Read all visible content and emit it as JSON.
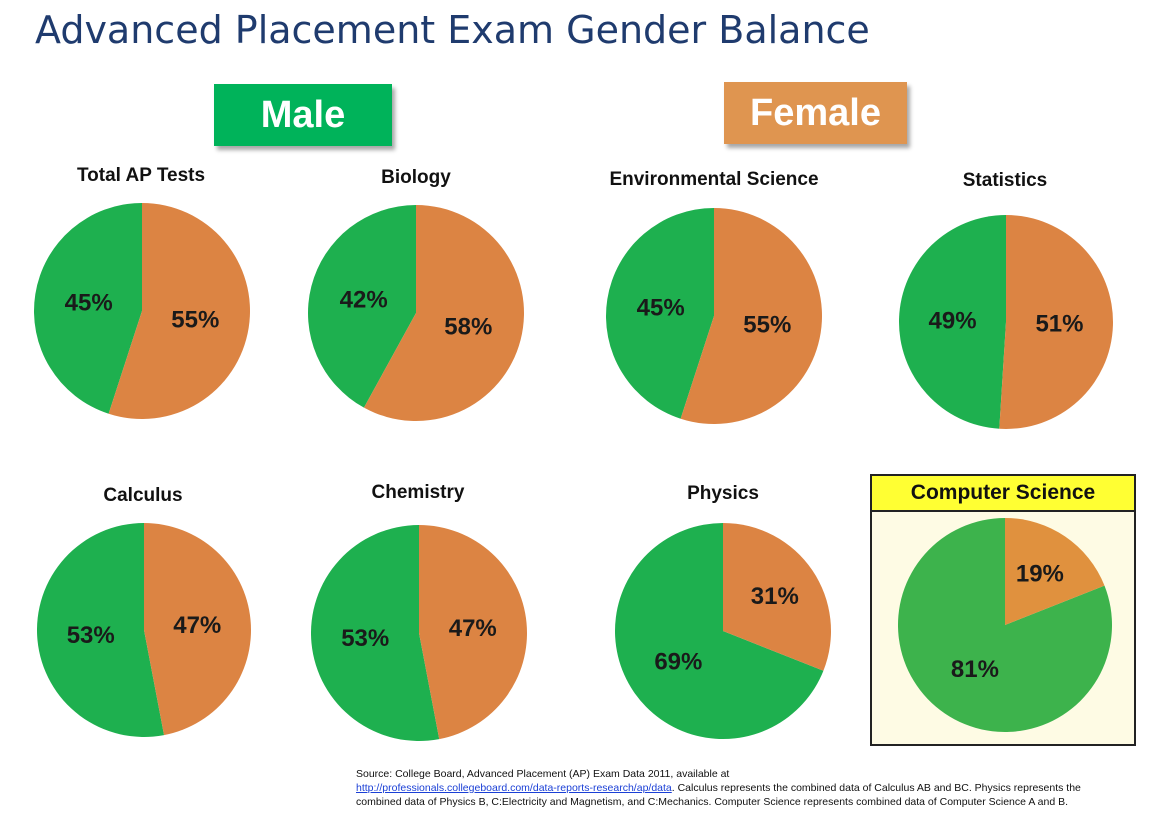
{
  "page": {
    "title": "Advanced Placement Exam Gender Balance",
    "banner_male": "Male",
    "banner_female": "Female",
    "source": {
      "prefix": "Source: College Board, Advanced Placement (AP) Exam Data 2011, available at",
      "link": "http://professionals.collegeboard.com/data-reports-research/ap/data",
      "suffix": ". Calculus represents the combined data of Calculus AB and BC. Physics represents the combined data of Physics B,  C:Electricity and Magnetism, and C:Mechanics. Computer Science represents combined data of Computer Science A and B."
    }
  },
  "colors": {
    "male": "#1eb04f",
    "female": "#dc8443",
    "male_banner": "#00b35a",
    "female_banner": "#df9550",
    "cs_male": "#3db34c",
    "cs_female": "#e0913e",
    "cs_header": "#ffff33"
  },
  "chart_data": [
    {
      "type": "pie",
      "title": "Total AP Tests",
      "categories": [
        "Male",
        "Female"
      ],
      "values": [
        45,
        55
      ],
      "labels": [
        "45%",
        "55%"
      ]
    },
    {
      "type": "pie",
      "title": "Biology",
      "categories": [
        "Male",
        "Female"
      ],
      "values": [
        42,
        58
      ],
      "labels": [
        "42%",
        "58%"
      ]
    },
    {
      "type": "pie",
      "title": "Environmental Science",
      "categories": [
        "Male",
        "Female"
      ],
      "values": [
        45,
        55
      ],
      "labels": [
        "45%",
        "55%"
      ]
    },
    {
      "type": "pie",
      "title": "Statistics",
      "categories": [
        "Male",
        "Female"
      ],
      "values": [
        49,
        51
      ],
      "labels": [
        "49%",
        "51%"
      ]
    },
    {
      "type": "pie",
      "title": "Calculus",
      "categories": [
        "Male",
        "Female"
      ],
      "values": [
        53,
        47
      ],
      "labels": [
        "53%",
        "47%"
      ]
    },
    {
      "type": "pie",
      "title": "Chemistry",
      "categories": [
        "Male",
        "Female"
      ],
      "values": [
        53,
        47
      ],
      "labels": [
        "53%",
        "47%"
      ]
    },
    {
      "type": "pie",
      "title": "Physics",
      "categories": [
        "Male",
        "Female"
      ],
      "values": [
        69,
        31
      ],
      "labels": [
        "69%",
        "31%"
      ]
    },
    {
      "type": "pie",
      "title": "Computer Science",
      "categories": [
        "Male",
        "Female"
      ],
      "values": [
        81,
        19
      ],
      "labels": [
        "81%",
        "19%"
      ],
      "highlighted": true
    }
  ]
}
